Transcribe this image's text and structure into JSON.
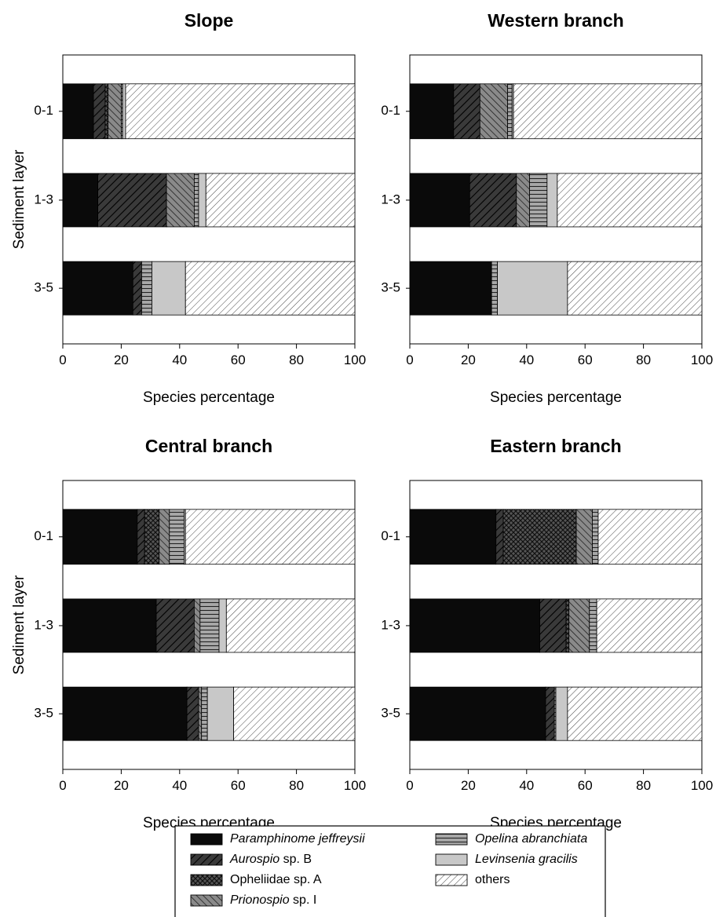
{
  "legend": [
    {
      "key": "pj",
      "label_italic": "Paramphinome jeffreysii",
      "label_plain": ""
    },
    {
      "key": "au",
      "label_italic": "Aurospio",
      "label_plain": " sp. B"
    },
    {
      "key": "op",
      "label_italic": "",
      "label_plain": "Opheliidae sp. A"
    },
    {
      "key": "pr",
      "label_italic": "Prionospio",
      "label_plain": " sp. I"
    },
    {
      "key": "ob",
      "label_italic": "Opelina abranchiata",
      "label_plain": ""
    },
    {
      "key": "lg",
      "label_italic": "Levinsenia gracilis",
      "label_plain": ""
    },
    {
      "key": "ot",
      "label_italic": "",
      "label_plain": "others"
    }
  ],
  "chart_data": [
    {
      "type": "bar",
      "orientation": "horizontal",
      "stacked": true,
      "title": "Slope",
      "xlabel": "Species percentage",
      "ylabel": "Sediment layer",
      "xlim": [
        0,
        100
      ],
      "xticks": [
        "0",
        "20",
        "40",
        "60",
        "80",
        "100"
      ],
      "categories": [
        "0-1",
        "1-3",
        "3-5"
      ],
      "series": [
        {
          "name": "Paramphinome jeffreysii",
          "key": "pj",
          "values": [
            10.5,
            12,
            24
          ]
        },
        {
          "name": "Aurospio sp. B",
          "key": "au",
          "values": [
            4,
            23.5,
            3
          ]
        },
        {
          "name": "Opheliidae sp. A",
          "key": "op",
          "values": [
            1,
            0,
            0
          ]
        },
        {
          "name": "Prionospio sp. I",
          "key": "pr",
          "values": [
            4.5,
            9.5,
            0
          ]
        },
        {
          "name": "Opelina abranchiata",
          "key": "ob",
          "values": [
            0.5,
            1.5,
            3.5
          ]
        },
        {
          "name": "Levinsenia gracilis",
          "key": "lg",
          "values": [
            1,
            2.5,
            11.5
          ]
        },
        {
          "name": "others",
          "key": "ot",
          "values": [
            78.5,
            51,
            58
          ]
        }
      ]
    },
    {
      "type": "bar",
      "orientation": "horizontal",
      "stacked": true,
      "title": "Western branch",
      "xlabel": "Species percentage",
      "ylabel": "",
      "xlim": [
        0,
        100
      ],
      "xticks": [
        "0",
        "20",
        "40",
        "60",
        "80",
        "100"
      ],
      "categories": [
        "0-1",
        "1-3",
        "3-5"
      ],
      "series": [
        {
          "name": "Paramphinome jeffreysii",
          "key": "pj",
          "values": [
            15,
            20.5,
            28
          ]
        },
        {
          "name": "Aurospio sp. B",
          "key": "au",
          "values": [
            9,
            16,
            0
          ]
        },
        {
          "name": "Opheliidae sp. A",
          "key": "op",
          "values": [
            0,
            0,
            0
          ]
        },
        {
          "name": "Prionospio sp. I",
          "key": "pr",
          "values": [
            9.5,
            4.5,
            0
          ]
        },
        {
          "name": "Opelina abranchiata",
          "key": "ob",
          "values": [
            1.5,
            6,
            2
          ]
        },
        {
          "name": "Levinsenia gracilis",
          "key": "lg",
          "values": [
            0.5,
            3.5,
            24
          ]
        },
        {
          "name": "others",
          "key": "ot",
          "values": [
            64.5,
            49.5,
            46
          ]
        }
      ]
    },
    {
      "type": "bar",
      "orientation": "horizontal",
      "stacked": true,
      "title": "Central branch",
      "xlabel": "Species percentage",
      "ylabel": "Sediment layer",
      "xlim": [
        0,
        100
      ],
      "xticks": [
        "0",
        "20",
        "40",
        "60",
        "80",
        "100"
      ],
      "categories": [
        "0-1",
        "1-3",
        "3-5"
      ],
      "series": [
        {
          "name": "Paramphinome jeffreysii",
          "key": "pj",
          "values": [
            25.5,
            32,
            42.5
          ]
        },
        {
          "name": "Aurospio sp. B",
          "key": "au",
          "values": [
            2.5,
            13,
            4
          ]
        },
        {
          "name": "Opheliidae sp. A",
          "key": "op",
          "values": [
            5,
            0,
            0
          ]
        },
        {
          "name": "Prionospio sp. I",
          "key": "pr",
          "values": [
            3.5,
            2,
            1
          ]
        },
        {
          "name": "Opelina abranchiata",
          "key": "ob",
          "values": [
            5,
            6.5,
            2
          ]
        },
        {
          "name": "Levinsenia gracilis",
          "key": "lg",
          "values": [
            0.5,
            2.5,
            9
          ]
        },
        {
          "name": "others",
          "key": "ot",
          "values": [
            58,
            44,
            41.5
          ]
        }
      ]
    },
    {
      "type": "bar",
      "orientation": "horizontal",
      "stacked": true,
      "title": "Eastern branch",
      "xlabel": "Species percentage",
      "ylabel": "",
      "xlim": [
        0,
        100
      ],
      "xticks": [
        "0",
        "20",
        "40",
        "60",
        "80",
        "100"
      ],
      "categories": [
        "0-1",
        "1-3",
        "3-5"
      ],
      "series": [
        {
          "name": "Paramphinome jeffreysii",
          "key": "pj",
          "values": [
            29.5,
            44.5,
            46.5
          ]
        },
        {
          "name": "Aurospio sp. B",
          "key": "au",
          "values": [
            2.5,
            9,
            3
          ]
        },
        {
          "name": "Opheliidae sp. A",
          "key": "op",
          "values": [
            25,
            1,
            0
          ]
        },
        {
          "name": "Prionospio sp. I",
          "key": "pr",
          "values": [
            5.5,
            7,
            0
          ]
        },
        {
          "name": "Opelina abranchiata",
          "key": "ob",
          "values": [
            2,
            2.5,
            0.5
          ]
        },
        {
          "name": "Levinsenia gracilis",
          "key": "lg",
          "values": [
            0,
            0,
            4
          ]
        },
        {
          "name": "others",
          "key": "ot",
          "values": [
            35.5,
            36,
            46
          ]
        }
      ]
    }
  ]
}
